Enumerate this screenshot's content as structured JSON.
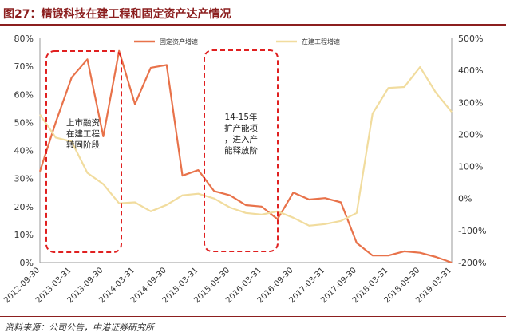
{
  "title": "图27：精锻科技在建工程和固定资产达产情况",
  "source": "资料来源：公司公告，中港证券研究所",
  "chart_data": {
    "type": "line",
    "categories": [
      "2012-09-30",
      "2012-12-31",
      "2013-03-31",
      "2013-06-30",
      "2013-09-30",
      "2013-12-31",
      "2014-03-31",
      "2014-06-30",
      "2014-09-30",
      "2014-12-31",
      "2015-03-31",
      "2015-06-30",
      "2015-09-30",
      "2015-12-31",
      "2016-03-31",
      "2016-06-30",
      "2016-09-30",
      "2016-12-31",
      "2017-03-31",
      "2017-06-30",
      "2017-09-30",
      "2017-12-31",
      "2018-03-31",
      "2018-06-30",
      "2018-09-30",
      "2018-12-31",
      "2019-03-31"
    ],
    "x_tick_labels": [
      "2012-09-30",
      "2013-03-31",
      "2013-09-30",
      "2014-03-31",
      "2014-09-30",
      "2015-03-31",
      "2015-09-30",
      "2016-03-31",
      "2016-09-30",
      "2017-03-31",
      "2017-09-30",
      "2018-03-31",
      "2018-09-30",
      "2019-03-31"
    ],
    "y_left": {
      "min": 0,
      "max": 80,
      "step": 10,
      "tick_labels": [
        "0%",
        "10%",
        "20%",
        "30%",
        "40%",
        "50%",
        "60%",
        "70%",
        "80%"
      ]
    },
    "y_right": {
      "min": -200,
      "max": 500,
      "step": 100,
      "tick_labels": [
        "-200%",
        "-100%",
        "0%",
        "100%",
        "200%",
        "300%",
        "400%",
        "500%"
      ]
    },
    "series": [
      {
        "name": "固定资产增速",
        "axis": "left",
        "color": "#e8724a",
        "values": [
          32.5,
          50,
          66,
          72.5,
          45,
          75.5,
          56.5,
          69.5,
          70.5,
          31,
          33,
          25.5,
          24,
          20.5,
          20,
          15.5,
          25,
          22.5,
          23,
          21.5,
          7,
          2.5,
          2.5,
          4,
          3.5,
          2,
          0
        ]
      },
      {
        "name": "在建工程增速",
        "axis": "right",
        "color": "#f1dc9e",
        "values": [
          262,
          190,
          178,
          80,
          45,
          -15,
          -12,
          -40,
          -20,
          10,
          15,
          0,
          -28,
          -45,
          -50,
          -40,
          -60,
          -85,
          -80,
          -70,
          -45,
          265,
          345,
          348,
          410,
          330,
          270
        ]
      }
    ],
    "annotations": [
      {
        "text_lines": [
          "上市融资",
          "在建工程",
          "转固阶段"
        ]
      },
      {
        "text_lines": [
          "14-15年",
          "扩产能项",
          "，进入产",
          "能释放阶"
        ]
      }
    ],
    "grid": false,
    "legend_position": "top"
  }
}
